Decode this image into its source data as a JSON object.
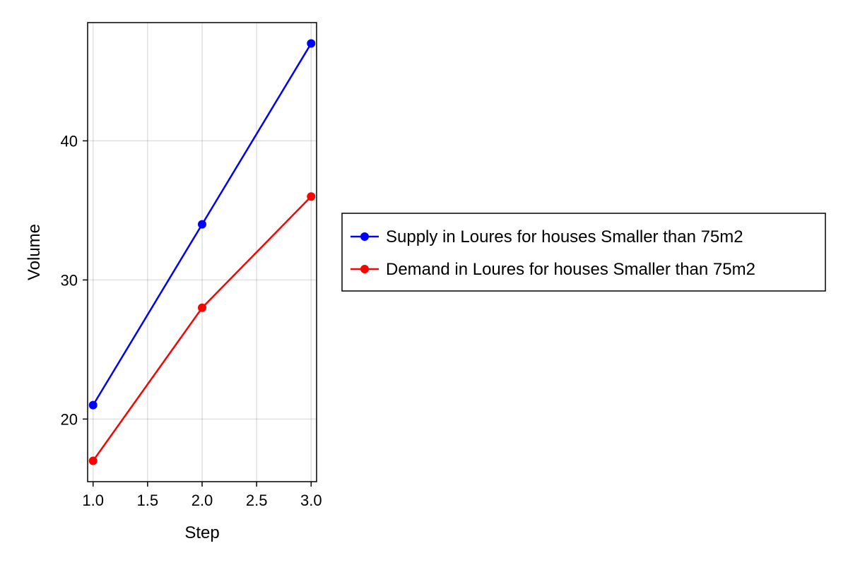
{
  "chart_data": {
    "type": "line",
    "title": "",
    "xlabel": "Step",
    "ylabel": "Volume",
    "x": [
      1.0,
      2.0,
      3.0
    ],
    "xlim": [
      0.95,
      3.05
    ],
    "ylim": [
      15.5,
      48.5
    ],
    "xticks": [
      1.0,
      1.5,
      2.0,
      2.5,
      3.0
    ],
    "xtick_labels": [
      "1.0",
      "1.5",
      "2.0",
      "2.5",
      "3.0"
    ],
    "yticks": [
      20,
      30,
      40
    ],
    "ytick_labels": [
      "20",
      "30",
      "40"
    ],
    "grid": true,
    "legend_position": "right",
    "series": [
      {
        "name": "Supply in Loures for houses Smaller than 75m2",
        "color": "#0000ff",
        "values": [
          21,
          34,
          47
        ]
      },
      {
        "name": "Demand in Loures for houses Smaller than 75m2",
        "color": "#ff0000",
        "values": [
          17,
          28,
          36
        ]
      }
    ]
  }
}
